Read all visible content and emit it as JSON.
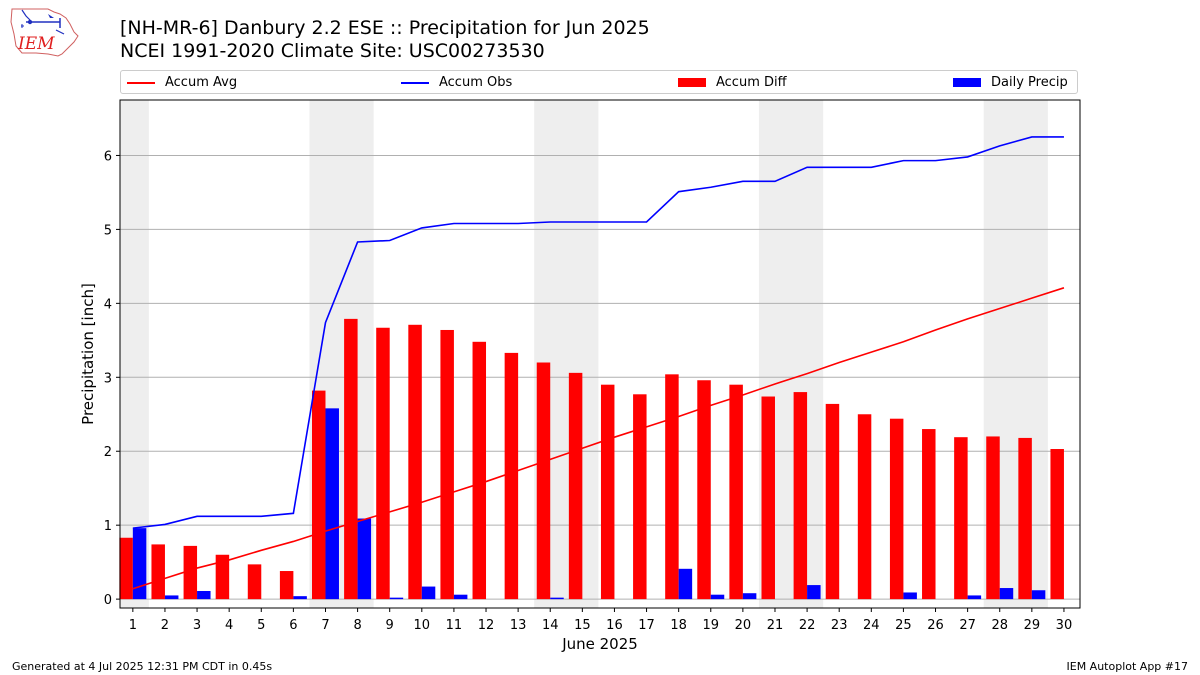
{
  "header": {
    "title_line1": "[NH-MR-6] Danbury 2.2 ESE :: Precipitation for Jun 2025",
    "title_line2": "NCEI 1991-2020 Climate Site: USC00273530",
    "logo_text": "IEM"
  },
  "footer": {
    "generated": "Generated at 4 Jul 2025 12:31 PM CDT in 0.45s",
    "app": "IEM Autoplot App #17"
  },
  "colors": {
    "accum_avg": "#ff0000",
    "accum_obs": "#0000ff",
    "accum_diff": "#ff0000",
    "daily_precip": "#0000ff",
    "weekend_shade": "#eeeeee",
    "grid": "#b0b0b0"
  },
  "chart_data": {
    "type": "bar",
    "xlabel": "June 2025",
    "ylabel": "Precipitation [inch]",
    "ylim": [
      -0.12,
      6.75
    ],
    "yticks": [
      0,
      1,
      2,
      3,
      4,
      5,
      6
    ],
    "grid": true,
    "legend_placement": "top",
    "x": [
      1,
      2,
      3,
      4,
      5,
      6,
      7,
      8,
      9,
      10,
      11,
      12,
      13,
      14,
      15,
      16,
      17,
      18,
      19,
      20,
      21,
      22,
      23,
      24,
      25,
      26,
      27,
      28,
      29,
      30
    ],
    "shaded_days": [
      [
        1,
        1
      ],
      [
        7,
        8
      ],
      [
        14,
        15
      ],
      [
        21,
        22
      ],
      [
        28,
        29
      ]
    ],
    "series": [
      {
        "name": "Accum Avg",
        "kind": "line",
        "values": [
          0.14,
          0.28,
          0.42,
          0.53,
          0.66,
          0.78,
          0.92,
          1.05,
          1.18,
          1.31,
          1.45,
          1.59,
          1.74,
          1.89,
          2.04,
          2.19,
          2.33,
          2.47,
          2.62,
          2.76,
          2.91,
          3.05,
          3.2,
          3.34,
          3.48,
          3.64,
          3.79,
          3.93,
          4.07,
          4.21
        ]
      },
      {
        "name": "Accum Obs",
        "kind": "line",
        "values": [
          0.96,
          1.01,
          1.12,
          1.12,
          1.12,
          1.16,
          3.74,
          4.83,
          4.85,
          5.02,
          5.08,
          5.08,
          5.08,
          5.1,
          5.1,
          5.1,
          5.1,
          5.51,
          5.57,
          5.65,
          5.65,
          5.84,
          5.84,
          5.84,
          5.93,
          5.93,
          5.98,
          6.13,
          6.25,
          6.25
        ]
      },
      {
        "name": "Accum Diff",
        "kind": "bar",
        "values": [
          0.83,
          0.74,
          0.72,
          0.6,
          0.47,
          0.38,
          2.82,
          3.79,
          3.67,
          3.71,
          3.64,
          3.48,
          3.33,
          3.2,
          3.06,
          2.9,
          2.77,
          3.04,
          2.96,
          2.9,
          2.74,
          2.8,
          2.64,
          2.5,
          2.44,
          2.3,
          2.19,
          2.2,
          2.18,
          2.03
        ]
      },
      {
        "name": "Daily Precip",
        "kind": "bar",
        "values": [
          0.96,
          0.05,
          0.11,
          0.0,
          0.0,
          0.04,
          2.58,
          1.09,
          0.02,
          0.17,
          0.06,
          0.0,
          0.0,
          0.02,
          0.0,
          0.0,
          0.0,
          0.41,
          0.06,
          0.08,
          0.0,
          0.19,
          0.0,
          0.0,
          0.09,
          0.0,
          0.05,
          0.15,
          0.12,
          0.0
        ]
      }
    ]
  }
}
